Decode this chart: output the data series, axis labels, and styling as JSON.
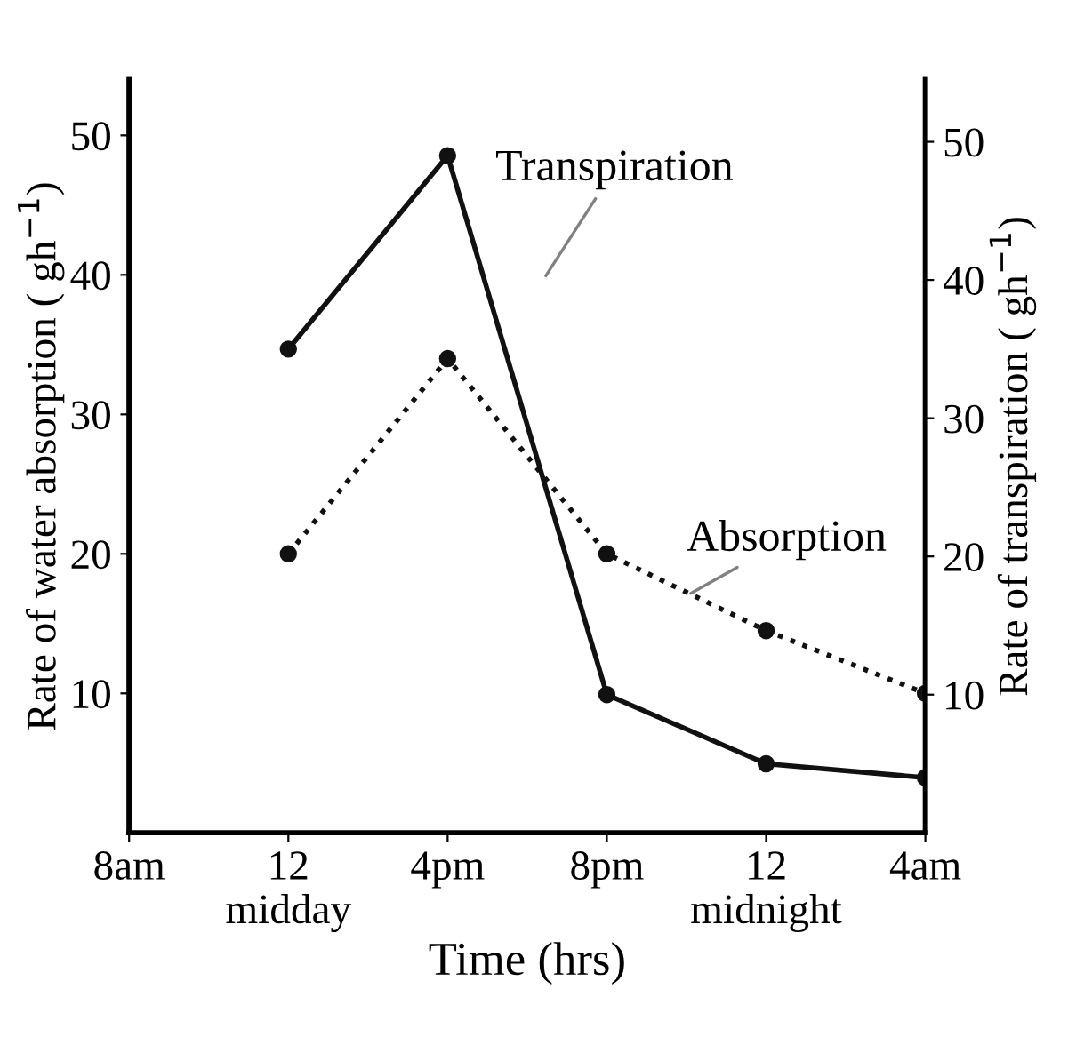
{
  "chart_data": {
    "type": "line",
    "xlabel": "Time (hrs)",
    "ylabel": "Rate of water absorption ( gh$^{−1}$)",
    "y2label": "Rate of transpiration ( gh$^{−1}$)",
    "categories": [
      "8am",
      "12\nmidday",
      "4pm",
      "8pm",
      "12\nmidnight",
      "4am"
    ],
    "series": [
      {
        "name": "Transpiration",
        "color": "#111111",
        "axis": "y2",
        "line_style": "solid",
        "values": [
          null,
          35,
          49,
          10,
          5,
          4
        ]
      },
      {
        "name": "Absorption",
        "color": "#111111",
        "line_style": "dotted",
        "values": [
          null,
          20,
          34,
          20,
          14.5,
          10
        ]
      }
    ],
    "ylim": [
      0,
      54
    ],
    "yticks": [
      10,
      20,
      30,
      40,
      50
    ],
    "y2lim": [
      0,
      54.5
    ],
    "y2ticks": [
      10,
      20,
      30,
      40,
      50
    ],
    "marker": "circle",
    "grid": false,
    "legend": false
  }
}
